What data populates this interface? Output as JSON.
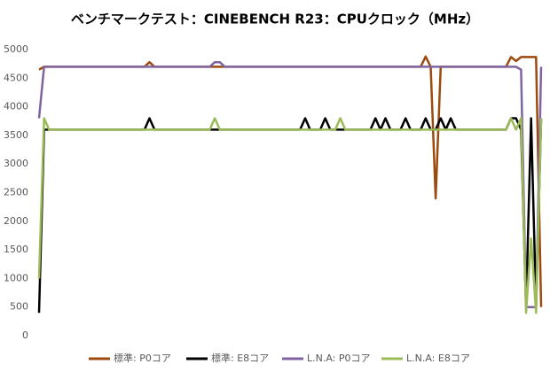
{
  "chart_data": {
    "type": "line",
    "title": "ベンチマークテスト：CINEBENCH R23：CPUクロック（MHz）",
    "categories": [
      null,
      null,
      null,
      null,
      null,
      null,
      null,
      null,
      null,
      null,
      null,
      null,
      null,
      null,
      null,
      null,
      null,
      null,
      null,
      null,
      null,
      null,
      null,
      null,
      null,
      null,
      null,
      null,
      null,
      null,
      null,
      null,
      null,
      null,
      null,
      null,
      null,
      null,
      null,
      null,
      null,
      null,
      null,
      null,
      null,
      null,
      null,
      null,
      null,
      null,
      null,
      null,
      null,
      null,
      null,
      null,
      null,
      null,
      null,
      null,
      null,
      null,
      null,
      null,
      null,
      null,
      null,
      null,
      null,
      null,
      null,
      null,
      null,
      null,
      null,
      null,
      null,
      null,
      null,
      null,
      null,
      null,
      null,
      null,
      null,
      null,
      null,
      null,
      null,
      null,
      null,
      null,
      null,
      null,
      null,
      null,
      null,
      null,
      null,
      null,
      null
    ],
    "series": [
      {
        "name": "標準: P0コア",
        "color": "#9c4a0e",
        "values": [
          4650,
          4700,
          4700,
          4700,
          4700,
          4700,
          4700,
          4700,
          4700,
          4700,
          4700,
          4700,
          4700,
          4700,
          4700,
          4700,
          4700,
          4700,
          4700,
          4700,
          4700,
          4700,
          4780,
          4700,
          4700,
          4700,
          4700,
          4700,
          4700,
          4700,
          4700,
          4700,
          4700,
          4700,
          4700,
          4700,
          4700,
          4700,
          4700,
          4700,
          4700,
          4700,
          4700,
          4700,
          4700,
          4700,
          4700,
          4700,
          4700,
          4700,
          4700,
          4700,
          4700,
          4700,
          4700,
          4700,
          4700,
          4700,
          4700,
          4700,
          4700,
          4700,
          4700,
          4700,
          4700,
          4700,
          4700,
          4700,
          4700,
          4700,
          4700,
          4700,
          4700,
          4700,
          4700,
          4700,
          4700,
          4880,
          4700,
          2400,
          4700,
          4700,
          4700,
          4700,
          4700,
          4700,
          4700,
          4700,
          4700,
          4700,
          4700,
          4700,
          4700,
          4700,
          4870,
          4800,
          4870,
          4870,
          4870,
          4870,
          500
        ]
      },
      {
        "name": "標準: E8コア",
        "color": "#000000",
        "values": [
          400,
          3600,
          3600,
          3600,
          3600,
          3600,
          3600,
          3600,
          3600,
          3600,
          3600,
          3600,
          3600,
          3600,
          3600,
          3600,
          3600,
          3600,
          3600,
          3600,
          3600,
          3600,
          3800,
          3600,
          3600,
          3600,
          3600,
          3600,
          3600,
          3600,
          3600,
          3600,
          3600,
          3600,
          3600,
          3600,
          3600,
          3600,
          3600,
          3600,
          3600,
          3600,
          3600,
          3600,
          3600,
          3600,
          3600,
          3600,
          3600,
          3600,
          3600,
          3600,
          3600,
          3800,
          3600,
          3600,
          3600,
          3800,
          3600,
          3600,
          3600,
          3600,
          3600,
          3600,
          3600,
          3600,
          3600,
          3800,
          3600,
          3800,
          3600,
          3600,
          3600,
          3800,
          3600,
          3600,
          3600,
          3800,
          3600,
          3600,
          3800,
          3600,
          3800,
          3600,
          3600,
          3600,
          3600,
          3600,
          3600,
          3600,
          3600,
          3600,
          3600,
          3600,
          3800,
          3800,
          3600,
          500,
          3800,
          500,
          3800
        ]
      },
      {
        "name": "L.N.A: P0コア",
        "color": "#8064a2",
        "values": [
          3800,
          4700,
          4700,
          4700,
          4700,
          4700,
          4700,
          4700,
          4700,
          4700,
          4700,
          4700,
          4700,
          4700,
          4700,
          4700,
          4700,
          4700,
          4700,
          4700,
          4700,
          4700,
          4700,
          4700,
          4700,
          4700,
          4700,
          4700,
          4700,
          4700,
          4700,
          4700,
          4700,
          4700,
          4700,
          4780,
          4780,
          4700,
          4700,
          4700,
          4700,
          4700,
          4700,
          4700,
          4700,
          4700,
          4700,
          4700,
          4700,
          4700,
          4700,
          4700,
          4700,
          4700,
          4700,
          4700,
          4700,
          4700,
          4700,
          4700,
          4700,
          4700,
          4700,
          4700,
          4700,
          4700,
          4700,
          4700,
          4700,
          4700,
          4700,
          4700,
          4700,
          4700,
          4700,
          4700,
          4700,
          4700,
          4700,
          4700,
          4700,
          4700,
          4700,
          4700,
          4700,
          4700,
          4700,
          4700,
          4700,
          4700,
          4700,
          4700,
          4700,
          4700,
          4700,
          4700,
          4650,
          500,
          500,
          500,
          4700
        ]
      },
      {
        "name": "L.N.A: E8コア",
        "color": "#9bbb59",
        "values": [
          1000,
          3800,
          3600,
          3600,
          3600,
          3600,
          3600,
          3600,
          3600,
          3600,
          3600,
          3600,
          3600,
          3600,
          3600,
          3600,
          3600,
          3600,
          3600,
          3600,
          3600,
          3600,
          3600,
          3600,
          3600,
          3600,
          3600,
          3600,
          3600,
          3600,
          3600,
          3600,
          3600,
          3600,
          3600,
          3800,
          3600,
          3600,
          3600,
          3600,
          3600,
          3600,
          3600,
          3600,
          3600,
          3600,
          3600,
          3600,
          3600,
          3600,
          3600,
          3600,
          3600,
          3600,
          3600,
          3600,
          3600,
          3600,
          3600,
          3600,
          3800,
          3600,
          3600,
          3600,
          3600,
          3600,
          3600,
          3600,
          3600,
          3600,
          3600,
          3600,
          3600,
          3600,
          3600,
          3600,
          3600,
          3600,
          3600,
          3600,
          3600,
          3600,
          3600,
          3600,
          3600,
          3600,
          3600,
          3600,
          3600,
          3600,
          3600,
          3600,
          3600,
          3600,
          3800,
          3600,
          3800,
          400,
          1700,
          400,
          3800
        ]
      }
    ],
    "ylim": [
      0,
      5000
    ],
    "yticks": [
      0,
      500,
      1000,
      1500,
      2000,
      2500,
      3000,
      3500,
      4000,
      4500,
      5000
    ],
    "grid": false,
    "legend": "bottom"
  }
}
